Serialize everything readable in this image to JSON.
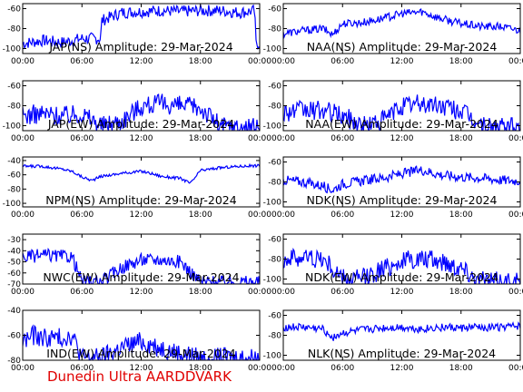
{
  "credit": "Dunedin Ultra AARDDVARK",
  "series_color": "#0000ff",
  "time_ticks": [
    "00:00",
    "06:00",
    "12:00",
    "18:00",
    "00:00"
  ],
  "chart_data": [
    {
      "type": "line",
      "title": "JAP(NS) Amplitude: 29-Mar-2024",
      "ylim": [
        -105,
        -55
      ],
      "yticks": [
        -100,
        -80,
        -60
      ],
      "x_hours": [
        0,
        2,
        4,
        6,
        7.9,
        8.0,
        10,
        12,
        14,
        16,
        18,
        20,
        22,
        23.5,
        23.6,
        24
      ],
      "y": [
        -95,
        -92,
        -94,
        -90,
        -90,
        -72,
        -64,
        -63,
        -62,
        -63,
        -62,
        -62,
        -64,
        -62,
        -95,
        -95
      ],
      "noise": 6
    },
    {
      "type": "line",
      "title": "NAA(NS) Amplitude: 29-Mar-2024",
      "ylim": [
        -105,
        -55
      ],
      "yticks": [
        -100,
        -80,
        -60
      ],
      "x_hours": [
        0,
        2,
        4,
        5,
        6,
        8,
        10,
        12,
        14,
        16,
        18,
        20,
        22,
        24
      ],
      "y": [
        -85,
        -82,
        -80,
        -86,
        -75,
        -74,
        -70,
        -65,
        -63,
        -70,
        -75,
        -78,
        -78,
        -82
      ],
      "noise": 4
    },
    {
      "type": "line",
      "title": "JAP(EW) Amplitude: 29-Mar-2024",
      "ylim": [
        -105,
        -55
      ],
      "yticks": [
        -100,
        -80,
        -60
      ],
      "x_hours": [
        0,
        2,
        4,
        6,
        8,
        10,
        12,
        14,
        16,
        18,
        20,
        22,
        24
      ],
      "y": [
        -90,
        -88,
        -90,
        -88,
        -100,
        -95,
        -80,
        -78,
        -80,
        -82,
        -100,
        -102,
        -102
      ],
      "noise": 10
    },
    {
      "type": "line",
      "title": "NAA(EW) Amplitude: 29-Mar-2024",
      "ylim": [
        -105,
        -55
      ],
      "yticks": [
        -100,
        -80,
        -60
      ],
      "x_hours": [
        0,
        2,
        4,
        6,
        8,
        10,
        12,
        14,
        16,
        18,
        20,
        22,
        24
      ],
      "y": [
        -86,
        -85,
        -85,
        -90,
        -100,
        -95,
        -80,
        -78,
        -80,
        -85,
        -100,
        -102,
        -102
      ],
      "noise": 10
    },
    {
      "type": "line",
      "title": "NPM(NS) Amplitude: 29-Mar-2024",
      "ylim": [
        -105,
        -35
      ],
      "yticks": [
        -100,
        -80,
        -60,
        -40
      ],
      "x_hours": [
        0,
        2,
        4,
        5,
        6,
        7,
        8,
        10,
        12,
        13,
        14,
        16,
        17,
        18,
        20,
        22,
        24
      ],
      "y": [
        -48,
        -48,
        -52,
        -55,
        -63,
        -68,
        -62,
        -58,
        -55,
        -58,
        -62,
        -65,
        -72,
        -54,
        -50,
        -48,
        -47
      ],
      "noise": 2
    },
    {
      "type": "line",
      "title": "NDK(NS) Amplitude: 29-Mar-2024",
      "ylim": [
        -105,
        -55
      ],
      "yticks": [
        -100,
        -80,
        -60
      ],
      "x_hours": [
        0,
        2,
        4,
        5,
        6,
        8,
        10,
        12,
        14,
        16,
        18,
        20,
        22,
        24
      ],
      "y": [
        -78,
        -80,
        -84,
        -88,
        -82,
        -79,
        -76,
        -72,
        -68,
        -73,
        -75,
        -76,
        -78,
        -79
      ],
      "noise": 5
    },
    {
      "type": "line",
      "title": "NWC(EW) Amplitude: 29-Mar-2024",
      "ylim": [
        -70,
        -25
      ],
      "yticks": [
        -70,
        -60,
        -50,
        -40,
        -30
      ],
      "x_hours": [
        0,
        2,
        4,
        5,
        6,
        8,
        10,
        12,
        14,
        16,
        18,
        20,
        22,
        24
      ],
      "y": [
        -46,
        -44,
        -45,
        -45,
        -68,
        -68,
        -55,
        -48,
        -48,
        -50,
        -68,
        -68,
        -68,
        -68
      ],
      "noise": 6
    },
    {
      "type": "line",
      "title": "NDK(EW) Amplitude: 29-Mar-2024",
      "ylim": [
        -105,
        -55
      ],
      "yticks": [
        -100,
        -80,
        -60
      ],
      "x_hours": [
        0,
        2,
        4,
        6,
        8,
        10,
        12,
        14,
        16,
        18,
        20,
        22,
        24
      ],
      "y": [
        -80,
        -78,
        -80,
        -100,
        -100,
        -90,
        -82,
        -80,
        -82,
        -88,
        -102,
        -102,
        -102
      ],
      "noise": 10
    },
    {
      "type": "line",
      "title": "IND(EW) Amplitude: 29-Mar-2024",
      "ylim": [
        -80,
        -40
      ],
      "yticks": [
        -80,
        -60,
        -40
      ],
      "x_hours": [
        0,
        1,
        2,
        4,
        5,
        6,
        8,
        10,
        12,
        14,
        16,
        18,
        20,
        22,
        24
      ],
      "y": [
        -65,
        -60,
        -62,
        -62,
        -60,
        -78,
        -78,
        -70,
        -65,
        -70,
        -75,
        -78,
        -78,
        -78,
        -78
      ],
      "noise": 8
    },
    {
      "type": "line",
      "title": "NLK(NS) Amplitude: 29-Mar-2024",
      "ylim": [
        -105,
        -55
      ],
      "yticks": [
        -100,
        -80,
        -60
      ],
      "x_hours": [
        0,
        2,
        4,
        5,
        6,
        8,
        10,
        12,
        14,
        16,
        18,
        20,
        22,
        24
      ],
      "y": [
        -72,
        -72,
        -74,
        -82,
        -78,
        -75,
        -73,
        -72,
        -74,
        -72,
        -73,
        -72,
        -72,
        -71
      ],
      "noise": 4
    }
  ]
}
